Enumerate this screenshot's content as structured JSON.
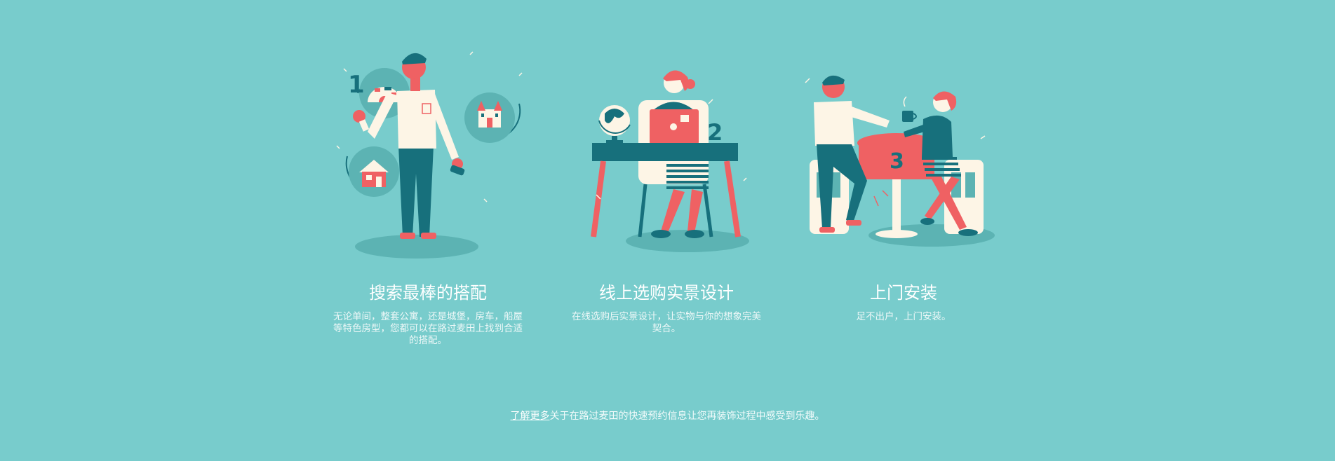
{
  "colors": {
    "background": "#78cccc",
    "teal": "#17707c",
    "coral": "#ef6163",
    "cream": "#fdf5e6",
    "shadow": "#5cb3b3"
  },
  "steps": [
    {
      "number": "1",
      "title": "搜索最棒的搭配",
      "description": "无论单间，整套公寓，还是城堡，房车，船屋等特色房型，您都可以在路过麦田上找到合适的搭配。",
      "icons": [
        "igloo-icon",
        "castle-icon",
        "house-icon"
      ]
    },
    {
      "number": "2",
      "title": "线上选购实景设计",
      "description": "在线选购后实景设计，让实物与你的想象完美契合。",
      "icons": [
        "globe-icon",
        "laptop-icon"
      ]
    },
    {
      "number": "3",
      "title": "上门安装",
      "description": "足不出户，上门安装。",
      "icons": [
        "coffee-cup-icon"
      ]
    }
  ],
  "footer": {
    "link_label": "了解更多",
    "text": "关于在路过麦田的快速预约信息让您再装饰过程中感受到乐趣。"
  }
}
